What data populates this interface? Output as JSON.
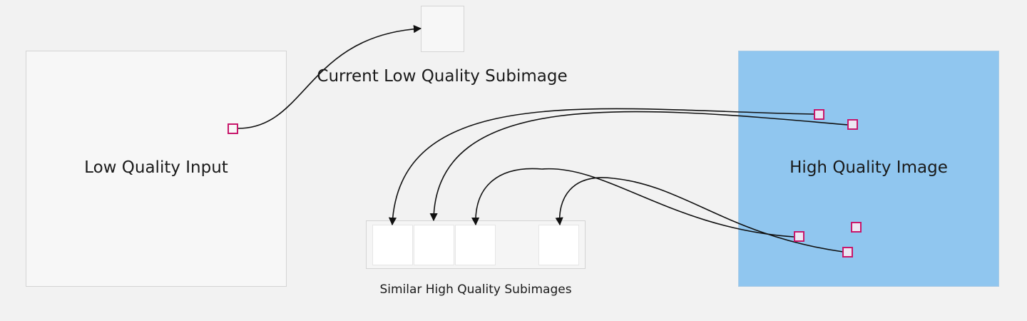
{
  "labels": {
    "low_quality_input": "Low Quality Input",
    "high_quality_image": "High Quality Image",
    "current_subimage": "Current Low Quality Subimage",
    "similar_subimages": "Similar High Quality Subimages"
  },
  "colors": {
    "background": "#f2f2f2",
    "high_quality_fill": "#90c6ef",
    "marker": "#c8176b",
    "arrow": "#111111"
  }
}
